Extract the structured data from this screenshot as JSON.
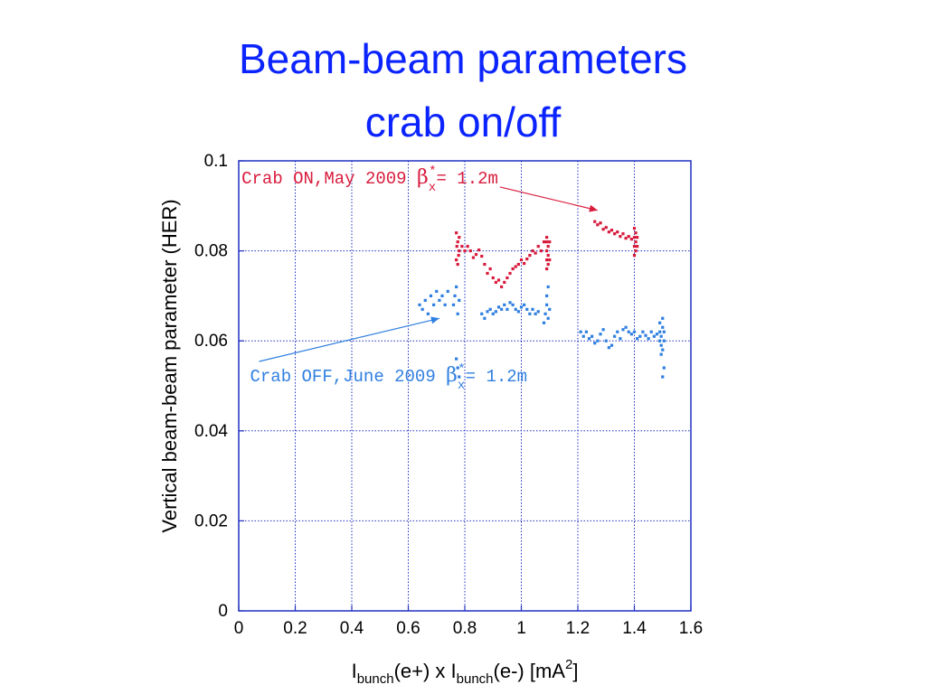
{
  "slide": {
    "title_line1": "Beam-beam parameters",
    "title_line2": "crab on/off"
  },
  "chart_data": {
    "type": "scatter",
    "title": "Beam-beam parameters crab on/off",
    "xlabel": {
      "main1": "I",
      "sub1": "bunch",
      "mid": "(e+) x I",
      "sub2": "bunch",
      "tail": "(e-) [mA",
      "sup": "2",
      "end": "]"
    },
    "ylabel": "Vertical beam-beam parameter (HER)",
    "xlim": [
      0,
      1.6
    ],
    "ylim": [
      0,
      0.1
    ],
    "x_ticks": [
      0,
      0.2,
      0.4,
      0.6,
      0.8,
      1,
      1.2,
      1.4,
      1.6
    ],
    "x_tick_labels": [
      "0",
      "0.2",
      "0.4",
      "0.6",
      "0.8",
      "1",
      "1.2",
      "1.4",
      "1.6"
    ],
    "y_ticks": [
      0,
      0.02,
      0.04,
      0.06,
      0.08,
      0.1
    ],
    "y_tick_labels": [
      "0",
      "0.02",
      "0.04",
      "0.06",
      "0.08",
      "0.1"
    ],
    "grid": true,
    "colors": {
      "crab_on": "#d81b3c",
      "crab_off": "#2f7fe0",
      "axis": "#2030c0",
      "title": "#0b24ff"
    },
    "annotations": [
      {
        "series": "crab_on",
        "text_a": "Crab ON,May 2009 ",
        "greek": "β",
        "sub": "x",
        "sup": "*",
        "text_b": "= 1.2m",
        "x_text": 0.01,
        "y_text": 0.095,
        "arrow_to": [
          1.27,
          0.089
        ]
      },
      {
        "series": "crab_off",
        "text_a": "Crab OFF,June 2009 ",
        "greek": "β",
        "sub": "x",
        "sup": "*",
        "text_b": "= 1.2m",
        "x_text": 0.04,
        "y_text": 0.051,
        "arrow_to": [
          0.71,
          0.065
        ]
      }
    ],
    "series": [
      {
        "key": "crab_on",
        "points": [
          [
            0.77,
            0.084
          ],
          [
            0.775,
            0.082
          ],
          [
            0.78,
            0.08
          ],
          [
            0.77,
            0.078
          ],
          [
            0.775,
            0.077
          ],
          [
            0.78,
            0.083
          ],
          [
            0.772,
            0.081
          ],
          [
            0.778,
            0.079
          ],
          [
            0.79,
            0.081
          ],
          [
            0.8,
            0.08
          ],
          [
            0.81,
            0.081
          ],
          [
            0.82,
            0.08
          ],
          [
            0.83,
            0.0785
          ],
          [
            0.84,
            0.0792
          ],
          [
            0.85,
            0.0802
          ],
          [
            0.86,
            0.0788
          ],
          [
            0.87,
            0.077
          ],
          [
            0.88,
            0.075
          ],
          [
            0.89,
            0.076
          ],
          [
            0.9,
            0.074
          ],
          [
            0.91,
            0.073
          ],
          [
            0.92,
            0.0735
          ],
          [
            0.93,
            0.072
          ],
          [
            0.94,
            0.073
          ],
          [
            0.95,
            0.074
          ],
          [
            0.96,
            0.075
          ],
          [
            0.97,
            0.076
          ],
          [
            0.98,
            0.0765
          ],
          [
            0.99,
            0.077
          ],
          [
            1.0,
            0.078
          ],
          [
            1.01,
            0.0772
          ],
          [
            1.02,
            0.0782
          ],
          [
            1.03,
            0.079
          ],
          [
            1.04,
            0.08
          ],
          [
            1.05,
            0.0795
          ],
          [
            1.06,
            0.081
          ],
          [
            1.07,
            0.08
          ],
          [
            1.08,
            0.082
          ],
          [
            1.09,
            0.076
          ],
          [
            1.09,
            0.078
          ],
          [
            1.09,
            0.08
          ],
          [
            1.09,
            0.082
          ],
          [
            1.09,
            0.083
          ],
          [
            1.095,
            0.077
          ],
          [
            1.095,
            0.079
          ],
          [
            1.095,
            0.081
          ],
          [
            1.1,
            0.078
          ],
          [
            1.1,
            0.082
          ],
          [
            1.26,
            0.0865
          ],
          [
            1.27,
            0.0858
          ],
          [
            1.28,
            0.0862
          ],
          [
            1.29,
            0.0848
          ],
          [
            1.3,
            0.0852
          ],
          [
            1.31,
            0.0842
          ],
          [
            1.32,
            0.0846
          ],
          [
            1.33,
            0.0838
          ],
          [
            1.34,
            0.0842
          ],
          [
            1.35,
            0.0832
          ],
          [
            1.36,
            0.0838
          ],
          [
            1.37,
            0.0828
          ],
          [
            1.38,
            0.0832
          ],
          [
            1.39,
            0.0826
          ],
          [
            1.4,
            0.079
          ],
          [
            1.4,
            0.081
          ],
          [
            1.4,
            0.083
          ],
          [
            1.4,
            0.085
          ],
          [
            1.405,
            0.08
          ],
          [
            1.405,
            0.082
          ],
          [
            1.405,
            0.084
          ],
          [
            1.41,
            0.081
          ],
          [
            1.41,
            0.083
          ]
        ]
      },
      {
        "key": "crab_off",
        "points": [
          [
            0.64,
            0.068
          ],
          [
            0.65,
            0.067
          ],
          [
            0.66,
            0.069
          ],
          [
            0.67,
            0.066
          ],
          [
            0.68,
            0.07
          ],
          [
            0.69,
            0.068
          ],
          [
            0.7,
            0.071
          ],
          [
            0.71,
            0.069
          ],
          [
            0.72,
            0.07
          ],
          [
            0.73,
            0.068
          ],
          [
            0.74,
            0.071
          ],
          [
            0.76,
            0.068
          ],
          [
            0.765,
            0.07
          ],
          [
            0.77,
            0.072
          ],
          [
            0.775,
            0.066
          ],
          [
            0.78,
            0.069
          ],
          [
            0.77,
            0.056
          ],
          [
            0.775,
            0.054
          ],
          [
            0.78,
            0.052
          ],
          [
            0.86,
            0.066
          ],
          [
            0.87,
            0.065
          ],
          [
            0.88,
            0.0665
          ],
          [
            0.89,
            0.067
          ],
          [
            0.9,
            0.066
          ],
          [
            0.91,
            0.0665
          ],
          [
            0.92,
            0.0675
          ],
          [
            0.93,
            0.067
          ],
          [
            0.94,
            0.068
          ],
          [
            0.95,
            0.067
          ],
          [
            0.96,
            0.0685
          ],
          [
            0.97,
            0.068
          ],
          [
            0.98,
            0.067
          ],
          [
            0.99,
            0.0665
          ],
          [
            1.0,
            0.0675
          ],
          [
            1.01,
            0.068
          ],
          [
            1.02,
            0.067
          ],
          [
            1.03,
            0.066
          ],
          [
            1.04,
            0.067
          ],
          [
            1.05,
            0.066
          ],
          [
            1.06,
            0.0665
          ],
          [
            1.08,
            0.064
          ],
          [
            1.085,
            0.066
          ],
          [
            1.09,
            0.068
          ],
          [
            1.09,
            0.07
          ],
          [
            1.095,
            0.065
          ],
          [
            1.095,
            0.072
          ],
          [
            1.1,
            0.067
          ],
          [
            1.21,
            0.062
          ],
          [
            1.22,
            0.061
          ],
          [
            1.23,
            0.062
          ],
          [
            1.24,
            0.0605
          ],
          [
            1.25,
            0.061
          ],
          [
            1.26,
            0.0595
          ],
          [
            1.27,
            0.06
          ],
          [
            1.28,
            0.0615
          ],
          [
            1.29,
            0.0625
          ],
          [
            1.3,
            0.06
          ],
          [
            1.31,
            0.0585
          ],
          [
            1.32,
            0.059
          ],
          [
            1.33,
            0.061
          ],
          [
            1.34,
            0.062
          ],
          [
            1.35,
            0.0605
          ],
          [
            1.36,
            0.0625
          ],
          [
            1.37,
            0.063
          ],
          [
            1.38,
            0.062
          ],
          [
            1.39,
            0.0615
          ],
          [
            1.4,
            0.062
          ],
          [
            1.41,
            0.0605
          ],
          [
            1.42,
            0.061
          ],
          [
            1.43,
            0.062
          ],
          [
            1.44,
            0.0612
          ],
          [
            1.45,
            0.0605
          ],
          [
            1.46,
            0.062
          ],
          [
            1.47,
            0.061
          ],
          [
            1.48,
            0.0615
          ],
          [
            1.49,
            0.06
          ],
          [
            1.49,
            0.062
          ],
          [
            1.49,
            0.064
          ],
          [
            1.495,
            0.057
          ],
          [
            1.495,
            0.059
          ],
          [
            1.495,
            0.061
          ],
          [
            1.5,
            0.063
          ],
          [
            1.5,
            0.065
          ],
          [
            1.5,
            0.058
          ],
          [
            1.505,
            0.06
          ],
          [
            1.505,
            0.062
          ],
          [
            1.5,
            0.052
          ],
          [
            1.505,
            0.054
          ]
        ]
      }
    ]
  }
}
